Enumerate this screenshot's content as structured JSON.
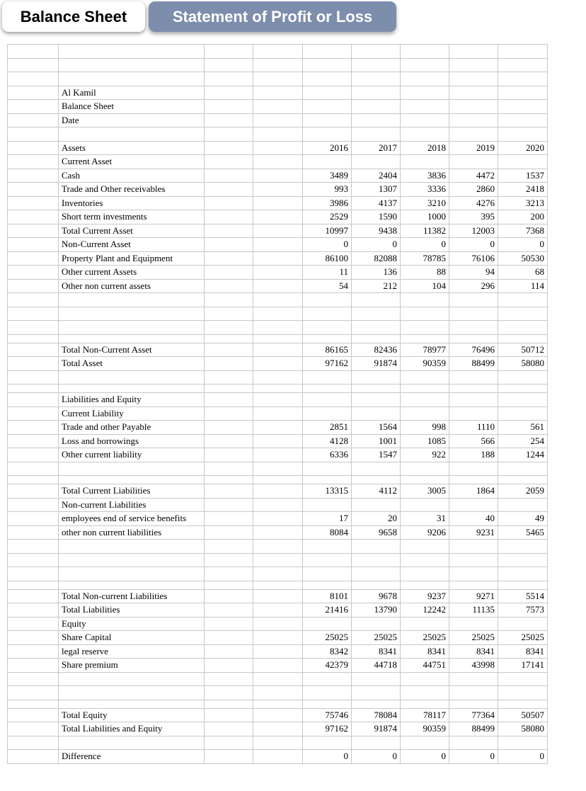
{
  "tabs": [
    {
      "label": "Balance Sheet",
      "active": true
    },
    {
      "label": "Statement of Profit or Loss",
      "active": false
    }
  ],
  "colors": {
    "active_tab_bg": "#ffffff",
    "inactive_tab_bg": "#7d8dac",
    "grid_line": "#c8c8c8",
    "text": "#000000"
  },
  "sheet": {
    "years": [
      "2016",
      "2017",
      "2018",
      "2019",
      "2020"
    ],
    "rows": [
      {
        "t": "blank"
      },
      {
        "t": "blank"
      },
      {
        "t": "blank"
      },
      {
        "t": "label",
        "label": "Al Kamil"
      },
      {
        "t": "label",
        "label": "Balance Sheet"
      },
      {
        "t": "label",
        "label": "Date"
      },
      {
        "t": "blank"
      },
      {
        "t": "data",
        "label": "Assets",
        "values": [
          "2016",
          "2017",
          "2018",
          "2019",
          "2020"
        ]
      },
      {
        "t": "label",
        "label": "Current Asset"
      },
      {
        "t": "data",
        "label": "Cash",
        "values": [
          3489,
          2404,
          3836,
          4472,
          1537
        ]
      },
      {
        "t": "data",
        "label": "Trade and Other receivables",
        "values": [
          993,
          1307,
          3336,
          2860,
          2418
        ]
      },
      {
        "t": "data",
        "label": "Inventories",
        "values": [
          3986,
          4137,
          3210,
          4276,
          3213
        ]
      },
      {
        "t": "data",
        "label": "Short term investments",
        "values": [
          2529,
          1590,
          1000,
          395,
          200
        ]
      },
      {
        "t": "data",
        "label": "Total Current Asset",
        "values": [
          10997,
          9438,
          11382,
          12003,
          7368
        ]
      },
      {
        "t": "data",
        "label": "Non-Current Asset",
        "values": [
          0,
          0,
          0,
          0,
          0
        ]
      },
      {
        "t": "data",
        "label": "Property Plant and Equipment",
        "values": [
          86100,
          82088,
          78785,
          76106,
          50530
        ]
      },
      {
        "t": "data",
        "label": "Other current Assets",
        "values": [
          11,
          136,
          88,
          94,
          68
        ]
      },
      {
        "t": "data",
        "label": "Other non current assets",
        "values": [
          54,
          212,
          104,
          296,
          114
        ]
      },
      {
        "t": "blank"
      },
      {
        "t": "blank"
      },
      {
        "t": "blank"
      },
      {
        "t": "blank-short"
      },
      {
        "t": "data",
        "label": "Total Non-Current Asset",
        "values": [
          86165,
          82436,
          78977,
          76496,
          50712
        ]
      },
      {
        "t": "data",
        "label": "Total Asset",
        "values": [
          97162,
          91874,
          90359,
          88499,
          58080
        ]
      },
      {
        "t": "blank"
      },
      {
        "t": "blank-short"
      },
      {
        "t": "label",
        "label": "Liabilities and Equity"
      },
      {
        "t": "label",
        "label": "Current Liability"
      },
      {
        "t": "data",
        "label": "Trade and other Payable",
        "values": [
          2851,
          1564,
          998,
          1110,
          561
        ]
      },
      {
        "t": "data",
        "label": "Loss and borrowings",
        "values": [
          4128,
          1001,
          1085,
          566,
          254
        ]
      },
      {
        "t": "data",
        "label": "Other current liability",
        "values": [
          6336,
          1547,
          922,
          188,
          1244
        ]
      },
      {
        "t": "blank"
      },
      {
        "t": "blank-short"
      },
      {
        "t": "data",
        "label": "Total Current Liabilities",
        "values": [
          13315,
          4112,
          3005,
          1864,
          2059
        ]
      },
      {
        "t": "label",
        "label": "Non-current Liabilities"
      },
      {
        "t": "data",
        "label": "employees end of service benefits",
        "values": [
          17,
          20,
          31,
          40,
          49
        ]
      },
      {
        "t": "data",
        "label": "other non current liabilities",
        "values": [
          8084,
          9658,
          9206,
          9231,
          5465
        ]
      },
      {
        "t": "blank"
      },
      {
        "t": "blank"
      },
      {
        "t": "blank"
      },
      {
        "t": "blank-short"
      },
      {
        "t": "data",
        "label": "Total Non-current Liabilities",
        "values": [
          8101,
          9678,
          9237,
          9271,
          5514
        ]
      },
      {
        "t": "data",
        "label": "Total Liabilities",
        "values": [
          21416,
          13790,
          12242,
          11135,
          7573
        ]
      },
      {
        "t": "label",
        "label": "Equity"
      },
      {
        "t": "data",
        "label": "Share Capital",
        "values": [
          25025,
          25025,
          25025,
          25025,
          25025
        ]
      },
      {
        "t": "data",
        "label": "legal reserve",
        "values": [
          8342,
          8341,
          8341,
          8341,
          8341
        ]
      },
      {
        "t": "data",
        "label": "Share premium",
        "values": [
          42379,
          44718,
          44751,
          43998,
          17141
        ]
      },
      {
        "t": "blank"
      },
      {
        "t": "blank"
      },
      {
        "t": "blank-short"
      },
      {
        "t": "data",
        "label": "Total Equity",
        "values": [
          75746,
          78084,
          78117,
          77364,
          50507
        ]
      },
      {
        "t": "data",
        "label": "Total Liabilities and Equity",
        "values": [
          97162,
          91874,
          90359,
          88499,
          58080
        ]
      },
      {
        "t": "blank"
      },
      {
        "t": "data",
        "label": "Difference",
        "values": [
          0,
          0,
          0,
          0,
          0
        ]
      }
    ]
  }
}
